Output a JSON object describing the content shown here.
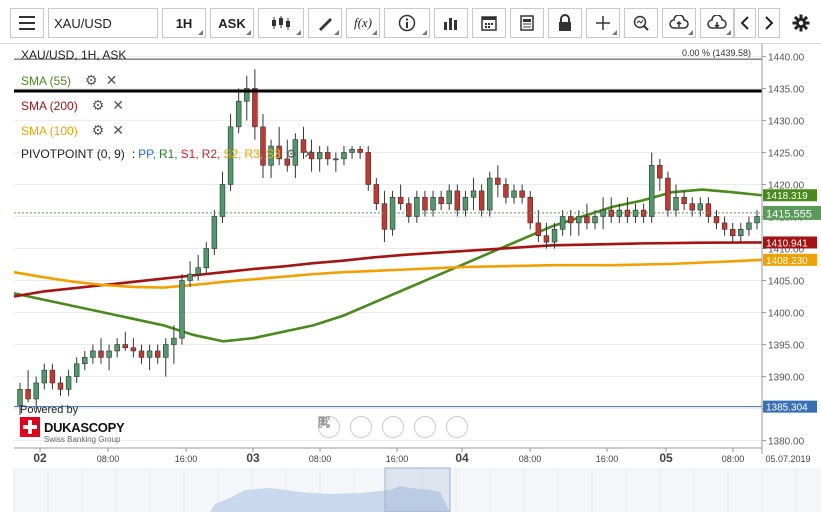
{
  "toolbar": {
    "menu_icon": "hamburger-menu-icon",
    "symbol_value": "XAU/USD",
    "timeframe": "1H",
    "price_side": "ASK",
    "buttons": [
      "candle-type-icon",
      "draw-icon",
      "function-icon",
      "info-icon",
      "volume-bars-icon",
      "calendar-icon",
      "document-icon",
      "lock-icon",
      "crosshair-icon",
      "zoom-icon",
      "cloud-upload-icon",
      "cloud-download-icon",
      "arrow-left-icon",
      "arrow-right-icon",
      "settings-icon"
    ],
    "function_label": "f(x)"
  },
  "chart": {
    "title": "XAU/USD, 1H, ASK",
    "top_info": "0.00 % (1439.58)",
    "indicators": [
      {
        "label": "SMA (55)",
        "color": "#4a8a1c"
      },
      {
        "label": "SMA (200)",
        "color": "#a31515"
      },
      {
        "label": "SMA (100)",
        "color": "#f0a000"
      }
    ],
    "pivot": {
      "name": "PIVOTPOINT (0, 9)",
      "sep": ":",
      "levels": [
        {
          "label": "PP,",
          "color": "#1a73e8"
        },
        {
          "label": "R1,",
          "color": "#2e7d32"
        },
        {
          "label": "S1,",
          "color": "#c62828"
        },
        {
          "label": "R2,",
          "color": "#c62828"
        },
        {
          "label": "S2,",
          "color": "#f0a000"
        },
        {
          "label": "R3,",
          "color": "#f0a000"
        },
        {
          "label": "S3",
          "color": "#e0c000"
        }
      ]
    },
    "price_axis": [
      "1440.00",
      "1435.00",
      "1430.00",
      "1425.00",
      "1420.00",
      "1415.00",
      "1410.00",
      "1405.00",
      "1400.00",
      "1395.00",
      "1390.00",
      "1385.00",
      "1380.00"
    ],
    "price_tags": [
      {
        "value": "1418.319",
        "color": "#4a8a1c"
      },
      {
        "value": "1415.555",
        "color": "#5a9a5a"
      },
      {
        "value": "1410.941",
        "color": "#a31515"
      },
      {
        "value": "1408.230",
        "color": "#f0a000"
      },
      {
        "value": "1385.304",
        "color": "#3b6fb5"
      }
    ],
    "time_axis": [
      "02",
      "08:00",
      "16:00",
      "03",
      "08:00",
      "16:00",
      "04",
      "08:00",
      "16:00",
      "05",
      "08:00",
      "05.07.2019"
    ],
    "brand_powered": "Powered by",
    "brand_name": "DUKASCOPY",
    "brand_sub": "Swiss Banking Group",
    "zoom_controls": [
      "scroll-left-icon",
      "zoom-out-icon",
      "reset-zoom-icon",
      "zoom-in-icon",
      "scroll-right-icon"
    ]
  },
  "chart_data": {
    "type": "candlestick",
    "title": "XAU/USD, 1H, ASK",
    "ylim": [
      1379,
      1441
    ],
    "candles": [
      [
        1385.5,
        1389,
        1384,
        1388
      ],
      [
        1388,
        1391,
        1386,
        1386.5
      ],
      [
        1386.5,
        1390,
        1385,
        1389
      ],
      [
        1389,
        1392,
        1388,
        1391
      ],
      [
        1391,
        1392,
        1388,
        1389
      ],
      [
        1389,
        1390,
        1387,
        1388
      ],
      [
        1388,
        1391,
        1387,
        1390
      ],
      [
        1390,
        1393,
        1389,
        1392
      ],
      [
        1392,
        1394,
        1391,
        1393
      ],
      [
        1393,
        1395,
        1392,
        1394
      ],
      [
        1394,
        1396,
        1392,
        1393
      ],
      [
        1393,
        1395,
        1391,
        1394
      ],
      [
        1394,
        1396,
        1393,
        1395
      ],
      [
        1395,
        1397,
        1394,
        1394.5
      ],
      [
        1394.5,
        1396,
        1393,
        1394
      ],
      [
        1394,
        1395,
        1392,
        1393
      ],
      [
        1393,
        1395,
        1391,
        1394
      ],
      [
        1394,
        1395,
        1392,
        1393
      ],
      [
        1393,
        1396,
        1390,
        1395
      ],
      [
        1395,
        1398,
        1392,
        1396
      ],
      [
        1396,
        1406,
        1395,
        1405
      ],
      [
        1405,
        1408,
        1404,
        1406
      ],
      [
        1406,
        1409,
        1405,
        1407
      ],
      [
        1407,
        1411,
        1406,
        1410
      ],
      [
        1410,
        1416,
        1409,
        1415
      ],
      [
        1415,
        1422,
        1414,
        1420
      ],
      [
        1420,
        1431,
        1419,
        1429
      ],
      [
        1429,
        1435,
        1428,
        1433
      ],
      [
        1433,
        1437,
        1430,
        1435
      ],
      [
        1435,
        1438,
        1427,
        1429
      ],
      [
        1429,
        1431,
        1421,
        1423
      ],
      [
        1423,
        1427,
        1421,
        1426
      ],
      [
        1426,
        1429,
        1423,
        1424
      ],
      [
        1424,
        1427,
        1422,
        1423
      ],
      [
        1423,
        1428,
        1421,
        1427
      ],
      [
        1427,
        1429,
        1424,
        1425
      ],
      [
        1425,
        1427,
        1422,
        1424
      ],
      [
        1424,
        1426,
        1422,
        1425
      ],
      [
        1425,
        1426,
        1423,
        1424
      ],
      [
        1424,
        1425,
        1422,
        1424
      ],
      [
        1424,
        1426,
        1423,
        1425
      ],
      [
        1425,
        1426,
        1424,
        1425.5
      ],
      [
        1425.5,
        1426,
        1424,
        1425
      ],
      [
        1425,
        1426,
        1419,
        1420
      ],
      [
        1420,
        1421,
        1416,
        1417
      ],
      [
        1417,
        1419,
        1411,
        1413
      ],
      [
        1413,
        1419,
        1412,
        1418
      ],
      [
        1418,
        1420,
        1416,
        1417
      ],
      [
        1417,
        1418,
        1414,
        1415
      ],
      [
        1415,
        1419,
        1414,
        1418
      ],
      [
        1418,
        1419,
        1415,
        1416
      ],
      [
        1416,
        1419,
        1415,
        1418
      ],
      [
        1418,
        1419,
        1416,
        1417
      ],
      [
        1417,
        1420,
        1416,
        1419
      ],
      [
        1419,
        1420,
        1415,
        1416
      ],
      [
        1416,
        1419,
        1415,
        1418
      ],
      [
        1418,
        1421,
        1416,
        1419
      ],
      [
        1419,
        1420,
        1415,
        1416
      ],
      [
        1416,
        1422,
        1415,
        1421
      ],
      [
        1421,
        1423,
        1418,
        1420
      ],
      [
        1420,
        1421,
        1417,
        1418
      ],
      [
        1418,
        1420,
        1417,
        1419
      ],
      [
        1419,
        1420,
        1417,
        1418
      ],
      [
        1418,
        1419,
        1413,
        1414
      ],
      [
        1414,
        1416,
        1411,
        1412
      ],
      [
        1412,
        1414,
        1410,
        1411
      ],
      [
        1411,
        1414,
        1410,
        1413
      ],
      [
        1413,
        1416,
        1412,
        1415
      ],
      [
        1415,
        1416,
        1412,
        1414
      ],
      [
        1414,
        1416,
        1412,
        1415
      ],
      [
        1415,
        1417,
        1413,
        1414
      ],
      [
        1414,
        1416,
        1413,
        1415
      ],
      [
        1415,
        1418,
        1413,
        1416
      ],
      [
        1416,
        1418,
        1414,
        1415
      ],
      [
        1415,
        1417,
        1414,
        1416
      ],
      [
        1416,
        1418,
        1414,
        1415
      ],
      [
        1415,
        1417,
        1414,
        1416
      ],
      [
        1416,
        1417,
        1414,
        1415
      ],
      [
        1415,
        1425,
        1414,
        1423
      ],
      [
        1423,
        1424,
        1419,
        1421
      ],
      [
        1421,
        1422,
        1415,
        1416
      ],
      [
        1416,
        1420,
        1415,
        1418
      ],
      [
        1418,
        1419,
        1416,
        1417
      ],
      [
        1417,
        1418,
        1415,
        1416
      ],
      [
        1416,
        1418,
        1415,
        1417
      ],
      [
        1417,
        1418,
        1414,
        1415
      ],
      [
        1415,
        1416,
        1413,
        1414
      ],
      [
        1414,
        1415,
        1412,
        1413
      ],
      [
        1413,
        1414,
        1411,
        1412
      ],
      [
        1412,
        1414,
        1411,
        1413
      ],
      [
        1413,
        1415,
        1412,
        1414
      ],
      [
        1414,
        1416,
        1413,
        1415
      ]
    ],
    "series": [
      {
        "name": "SMA (55)",
        "values": [
          1403,
          1402,
          1401,
          1400,
          1399,
          1398,
          1396.5,
          1395.5,
          1396,
          1397,
          1398,
          1399.5,
          1401.5,
          1403.5,
          1405.5,
          1407.5,
          1409.5,
          1411.5,
          1413.5,
          1415,
          1416.5,
          1417.5,
          1418.8,
          1419.2,
          1418.8,
          1418.319
        ]
      },
      {
        "name": "SMA (200)",
        "values": [
          1402.5,
          1403.3,
          1403.8,
          1404.3,
          1404.8,
          1405.3,
          1405.8,
          1406.3,
          1406.8,
          1407.2,
          1407.7,
          1408.1,
          1408.6,
          1409.0,
          1409.3,
          1409.6,
          1409.9,
          1410.2,
          1410.5,
          1410.6,
          1410.7,
          1410.8,
          1410.85,
          1410.9,
          1410.92,
          1410.941
        ]
      },
      {
        "name": "SMA (100)",
        "values": [
          1406.3,
          1405.5,
          1404.8,
          1404.3,
          1404.0,
          1403.9,
          1404.3,
          1404.8,
          1405.2,
          1405.6,
          1406.0,
          1406.3,
          1406.5,
          1406.7,
          1406.9,
          1407.1,
          1407.2,
          1407.3,
          1407.4,
          1407.4,
          1407.4,
          1407.5,
          1407.6,
          1407.8,
          1408.0,
          1408.23
        ]
      }
    ],
    "horizontal_lines": [
      1439.58,
      1434.6,
      1415.555,
      1385.304
    ]
  }
}
